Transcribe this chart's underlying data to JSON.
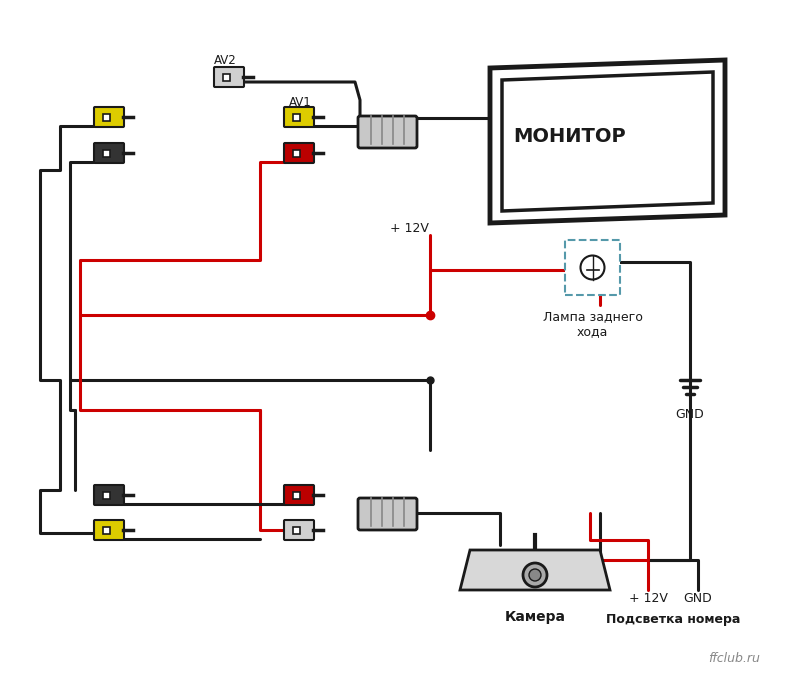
{
  "bg_color": "#ffffff",
  "title": "",
  "watermark": "ffclub.ru",
  "monitor_label": "МОНИТОР",
  "lamp_label": "Лампа заднего\nхода",
  "gnd_label": "GND",
  "camera_label": "Камера",
  "backlight_label": "Подсветка номера",
  "plus12v_label1": "+ 12V",
  "plus12v_label2": "+ 12V",
  "av1_label": "AV1",
  "av2_label": "AV2",
  "line_color": "#1a1a1a",
  "red_color": "#cc0000",
  "yellow_color": "#ddcc00",
  "lamp_box_color": "#5599aa"
}
